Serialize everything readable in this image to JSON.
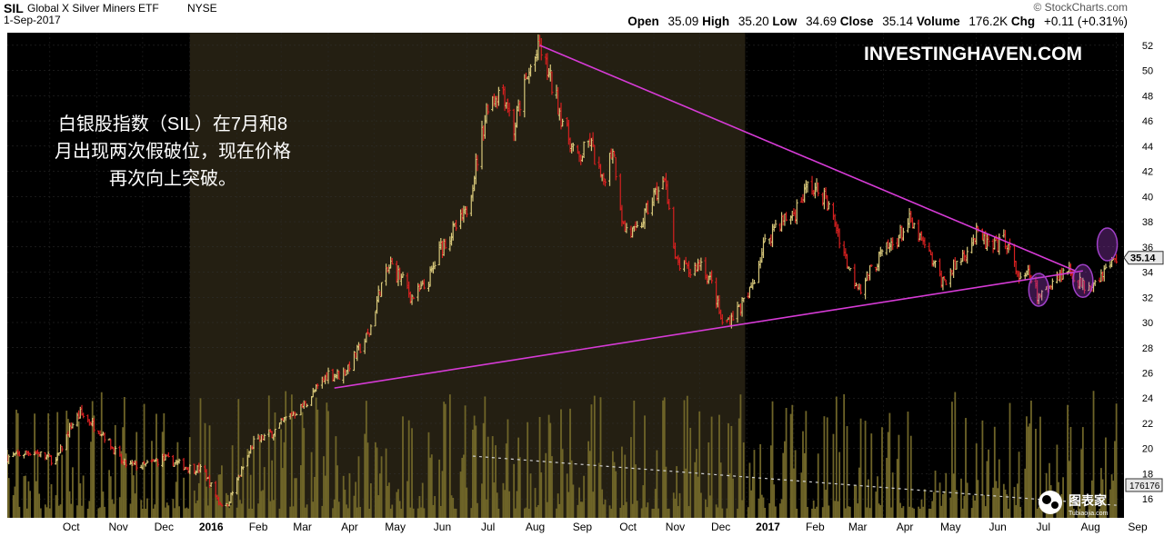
{
  "header": {
    "ticker": "SIL",
    "name": "Global X Silver Miners ETF",
    "exchange": "NYSE",
    "date": "1-Sep-2017",
    "source": "© StockCharts.com",
    "open_label": "Open",
    "open": "35.09",
    "high_label": "High",
    "high": "35.20",
    "low_label": "Low",
    "low": "34.69",
    "close_label": "Close",
    "close": "35.14",
    "volume_label": "Volume",
    "volume": "176.2K",
    "chg_label": "Chg",
    "chg": "+0.11 (+0.31%)"
  },
  "watermark": "INVESTINGHAVEN.COM",
  "annotation": {
    "lines": [
      "白银股指数（SIL）在7月和8",
      "月出现两次假破位，现在价格",
      "再次向上突破。"
    ]
  },
  "logo": {
    "text": "图表家",
    "sub": "Tubiaojia.com"
  },
  "chart_data": {
    "type": "bar",
    "title": "SIL Global X Silver Miners ETF NYSE",
    "price_axis": {
      "ylim": [
        14.5,
        53
      ],
      "ticks": [
        16,
        18,
        20,
        22,
        24,
        26,
        28,
        30,
        32,
        34,
        36,
        38,
        40,
        42,
        44,
        46,
        48,
        50,
        52
      ]
    },
    "x_axis": {
      "labels": [
        "Oct",
        "Nov",
        "Dec",
        "2016",
        "Feb",
        "Mar",
        "Apr",
        "May",
        "Jun",
        "Jul",
        "Aug",
        "Sep",
        "Oct",
        "Nov",
        "Dec",
        "2017",
        "Feb",
        "Mar",
        "Apr",
        "May",
        "Jun",
        "Jul",
        "Aug",
        "Sep"
      ],
      "bold": [
        "2016",
        "2017"
      ],
      "range": [
        "2015-09-03",
        "2017-09-06"
      ]
    },
    "last_price": 35.14,
    "volume_tag": "176176",
    "highlight_period": [
      "2016-01-01",
      "2016-12-31"
    ],
    "price_path": [
      [
        "2015-09-03",
        19.3
      ],
      [
        "2015-09-20",
        19.8
      ],
      [
        "2015-10-05",
        19.0
      ],
      [
        "2015-10-15",
        21.8
      ],
      [
        "2015-10-21",
        22.8
      ],
      [
        "2015-11-05",
        21.2
      ],
      [
        "2015-11-18",
        18.8
      ],
      [
        "2015-12-01",
        18.6
      ],
      [
        "2015-12-15",
        19.2
      ],
      [
        "2015-12-31",
        18.5
      ],
      [
        "2016-01-10",
        18.3
      ],
      [
        "2016-01-20",
        15.8
      ],
      [
        "2016-01-25",
        15.4
      ],
      [
        "2016-02-05",
        18.5
      ],
      [
        "2016-02-12",
        20.5
      ],
      [
        "2016-02-25",
        21.3
      ],
      [
        "2016-03-05",
        22.5
      ],
      [
        "2016-03-15",
        23.3
      ],
      [
        "2016-03-25",
        24.8
      ],
      [
        "2016-04-01",
        26.0
      ],
      [
        "2016-04-10",
        25.8
      ],
      [
        "2016-04-20",
        27.6
      ],
      [
        "2016-04-28",
        29.2
      ],
      [
        "2016-05-05",
        32.7
      ],
      [
        "2016-05-12",
        34.6
      ],
      [
        "2016-05-20",
        33.3
      ],
      [
        "2016-05-26",
        32.0
      ],
      [
        "2016-06-05",
        33.0
      ],
      [
        "2016-06-14",
        36.0
      ],
      [
        "2016-06-22",
        37.2
      ],
      [
        "2016-06-30",
        38.5
      ],
      [
        "2016-07-08",
        43.0
      ],
      [
        "2016-07-15",
        47.5
      ],
      [
        "2016-07-25",
        48.6
      ],
      [
        "2016-08-01",
        45.2
      ],
      [
        "2016-08-05",
        47.4
      ],
      [
        "2016-08-12",
        50.2
      ],
      [
        "2016-08-18",
        51.8
      ],
      [
        "2016-08-25",
        49.2
      ],
      [
        "2016-09-05",
        45.0
      ],
      [
        "2016-09-12",
        42.8
      ],
      [
        "2016-09-20",
        44.4
      ],
      [
        "2016-09-28",
        41.0
      ],
      [
        "2016-10-05",
        44.0
      ],
      [
        "2016-10-12",
        37.6
      ],
      [
        "2016-10-20",
        37.0
      ],
      [
        "2016-11-01",
        40.0
      ],
      [
        "2016-11-09",
        41.2
      ],
      [
        "2016-11-15",
        34.8
      ],
      [
        "2016-11-25",
        34.0
      ],
      [
        "2016-12-02",
        34.8
      ],
      [
        "2016-12-10",
        32.8
      ],
      [
        "2016-12-16",
        29.8
      ],
      [
        "2016-12-23",
        30.6
      ],
      [
        "2017-01-02",
        32.0
      ],
      [
        "2017-01-12",
        36.0
      ],
      [
        "2017-01-20",
        37.8
      ],
      [
        "2017-02-01",
        38.6
      ],
      [
        "2017-02-10",
        40.8
      ],
      [
        "2017-02-20",
        40.2
      ],
      [
        "2017-03-01",
        37.6
      ],
      [
        "2017-03-10",
        34.0
      ],
      [
        "2017-03-17",
        32.8
      ],
      [
        "2017-03-28",
        35.0
      ],
      [
        "2017-04-08",
        36.4
      ],
      [
        "2017-04-18",
        38.0
      ],
      [
        "2017-04-28",
        36.0
      ],
      [
        "2017-05-10",
        33.2
      ],
      [
        "2017-05-20",
        34.8
      ],
      [
        "2017-06-01",
        37.0
      ],
      [
        "2017-06-12",
        35.8
      ],
      [
        "2017-06-20",
        36.6
      ],
      [
        "2017-06-30",
        33.2
      ],
      [
        "2017-07-06",
        33.8
      ],
      [
        "2017-07-12",
        31.8
      ],
      [
        "2017-07-22",
        33.6
      ],
      [
        "2017-08-01",
        34.2
      ],
      [
        "2017-08-10",
        32.9
      ],
      [
        "2017-08-20",
        33.6
      ],
      [
        "2017-08-28",
        34.6
      ],
      [
        "2017-09-01",
        35.14
      ]
    ],
    "trendlines": [
      {
        "from": [
          "2016-04-05",
          24.8
        ],
        "to": [
          "2017-08-10",
          34.1
        ],
        "color": "#d63bd6"
      },
      {
        "from": [
          "2016-08-18",
          52.0
        ],
        "to": [
          "2017-08-05",
          34.1
        ],
        "color": "#d63bd6"
      }
    ],
    "volume_trendline": {
      "from": [
        "2016-07-05",
        19.4
      ],
      "to": [
        "2017-09-01",
        15.5
      ]
    },
    "highlights": [
      {
        "date": "2017-07-12",
        "price": 32.6
      },
      {
        "date": "2017-08-10",
        "price": 33.3
      },
      {
        "date": "2017-08-26",
        "price": 36.2
      }
    ]
  }
}
